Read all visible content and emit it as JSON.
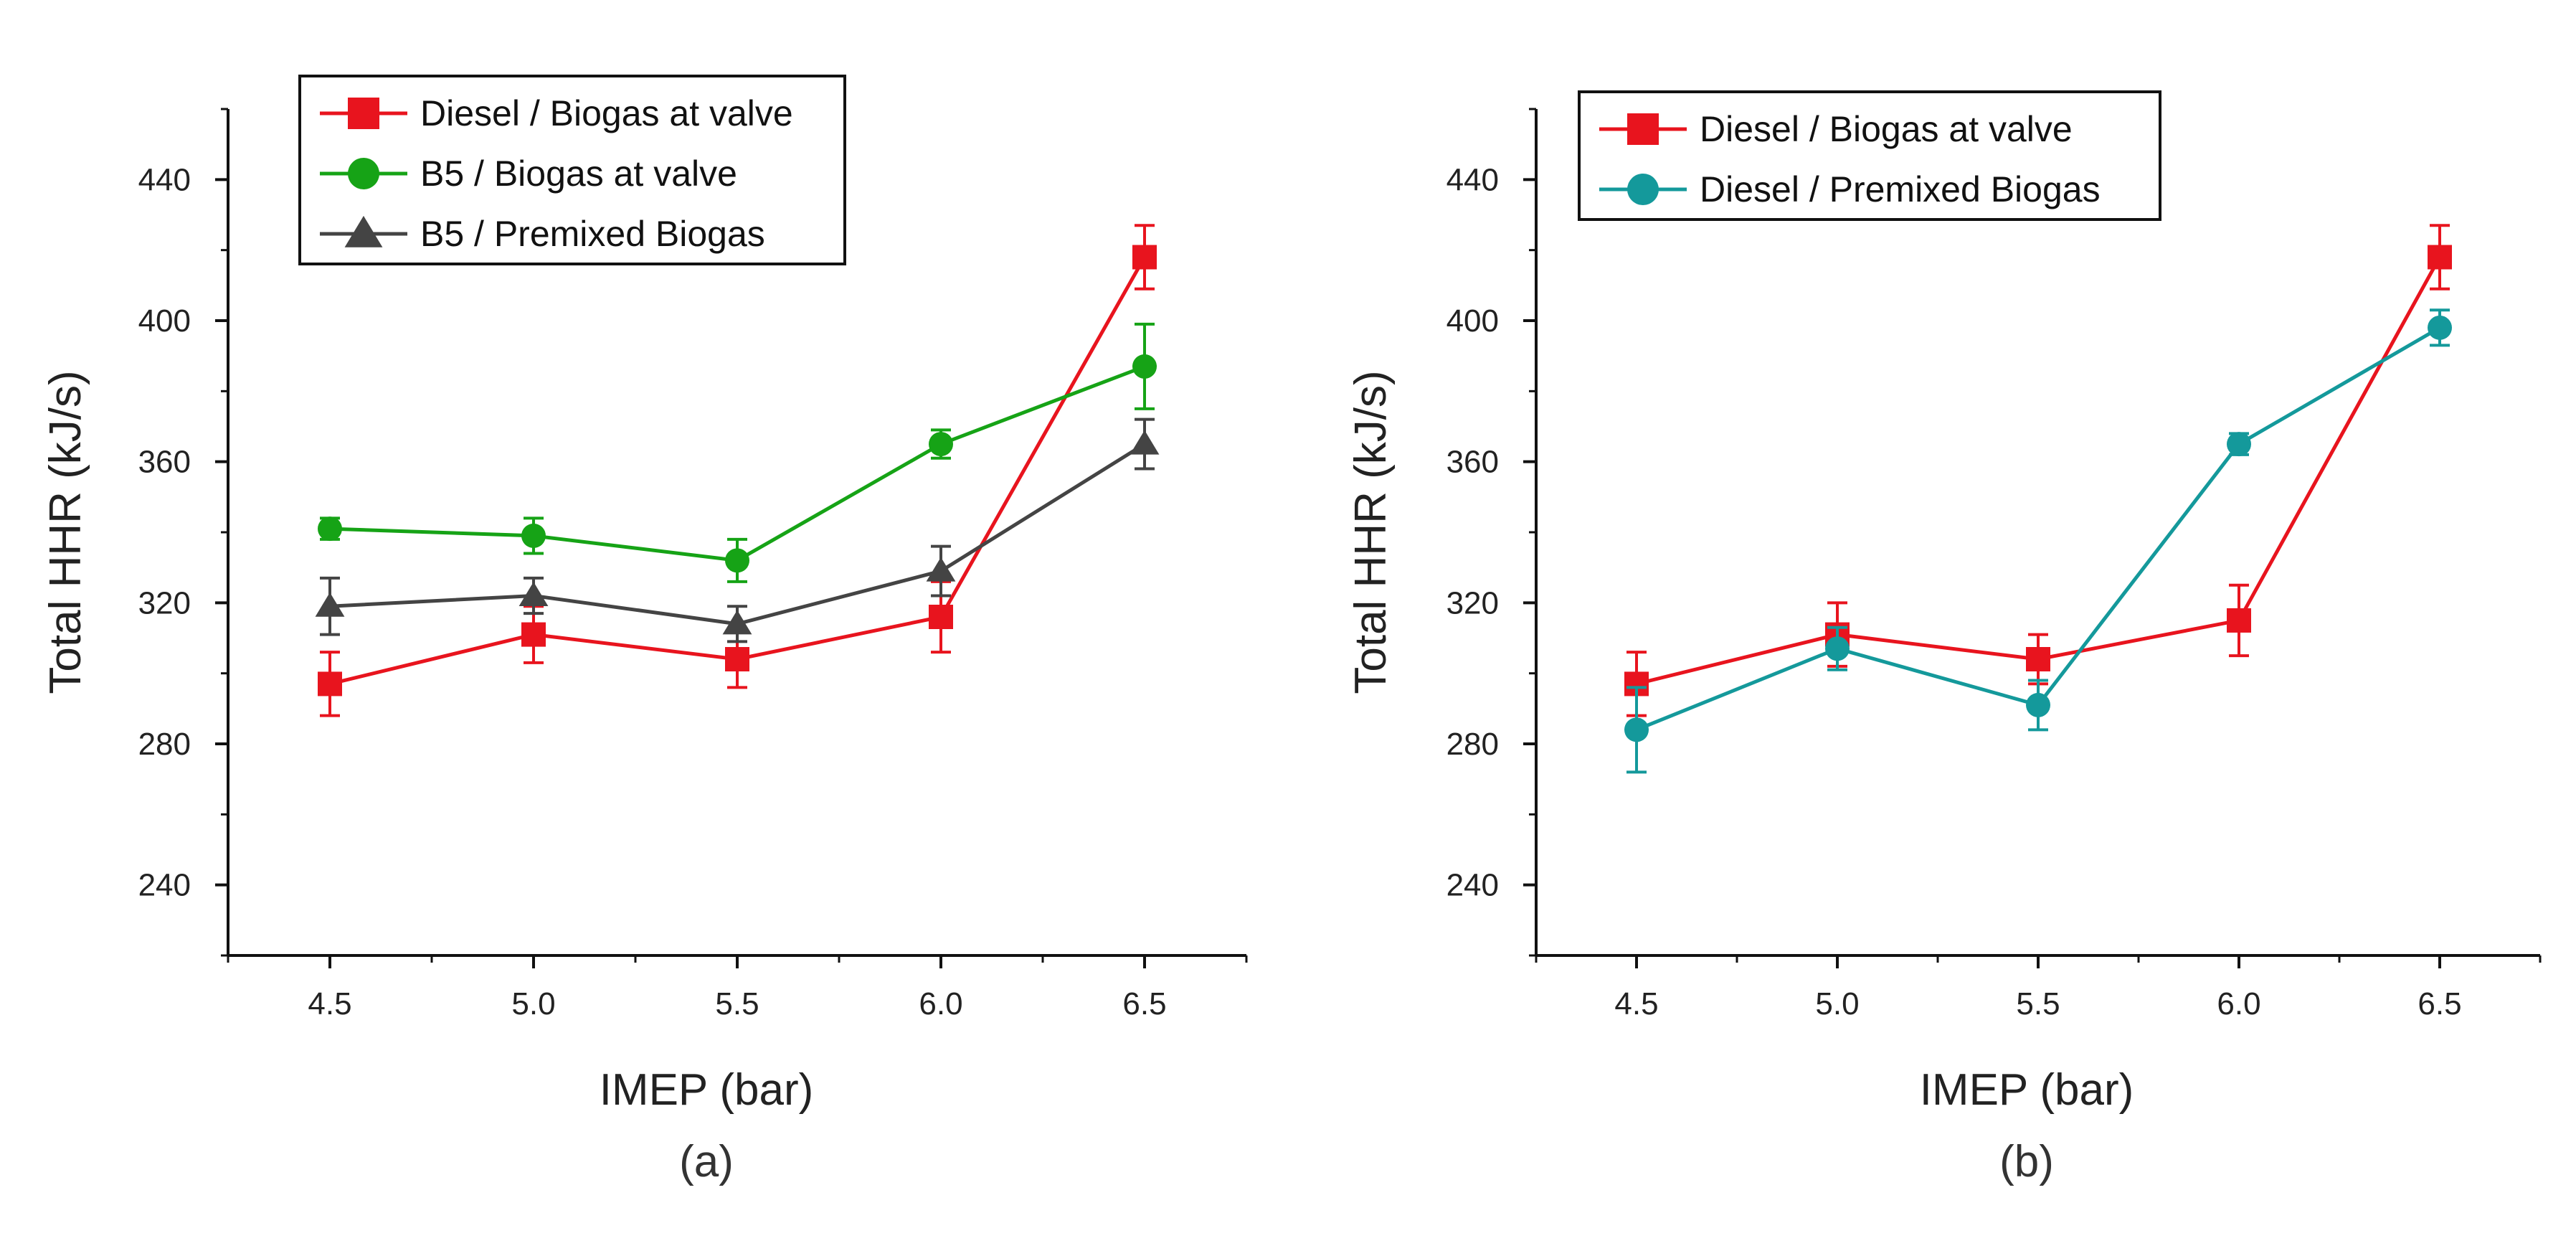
{
  "chart_data": [
    {
      "panel_label": "(a)",
      "type": "line",
      "xlabel": "IMEP (bar)",
      "ylabel": "Total HHR (kJ/s)",
      "x": [
        4.5,
        5.0,
        5.5,
        6.0,
        6.5
      ],
      "x_ticks": [
        "4.5",
        "5.0",
        "5.5",
        "6.0",
        "6.5"
      ],
      "xlim": [
        4.25,
        6.75
      ],
      "y_ticks": [
        "240",
        "280",
        "320",
        "360",
        "400",
        "440"
      ],
      "ylim": [
        220,
        460
      ],
      "grid": false,
      "legend_position": "top-left",
      "series": [
        {
          "name": "Diesel / Biogas at valve",
          "color": "#e8141e",
          "marker": "square",
          "values": [
            297,
            311,
            304,
            316,
            418
          ],
          "errors": [
            9,
            8,
            8,
            10,
            9
          ]
        },
        {
          "name": "B5 / Biogas at valve",
          "color": "#16a316",
          "marker": "circle",
          "values": [
            341,
            339,
            332,
            365,
            387
          ],
          "errors": [
            3,
            5,
            6,
            4,
            12
          ]
        },
        {
          "name": "B5 / Premixed Biogas",
          "color": "#444444",
          "marker": "triangle",
          "values": [
            319,
            322,
            314,
            329,
            365
          ],
          "errors": [
            8,
            5,
            5,
            7,
            7
          ]
        }
      ]
    },
    {
      "panel_label": "(b)",
      "type": "line",
      "xlabel": "IMEP (bar)",
      "ylabel": "Total HHR (kJ/s)",
      "x": [
        4.5,
        5.0,
        5.5,
        6.0,
        6.5
      ],
      "x_ticks": [
        "4.5",
        "5.0",
        "5.5",
        "6.0",
        "6.5"
      ],
      "xlim": [
        4.25,
        6.75
      ],
      "y_ticks": [
        "240",
        "280",
        "320",
        "360",
        "400",
        "440"
      ],
      "ylim": [
        220,
        460
      ],
      "grid": false,
      "legend_position": "top-left",
      "series": [
        {
          "name": "Diesel / Biogas at valve",
          "color": "#e8141e",
          "marker": "square",
          "values": [
            297,
            311,
            304,
            315,
            418
          ],
          "errors": [
            9,
            9,
            7,
            10,
            9
          ]
        },
        {
          "name": "Diesel / Premixed Biogas",
          "color": "#14999b",
          "marker": "circle",
          "values": [
            284,
            307,
            291,
            365,
            398
          ],
          "errors": [
            12,
            6,
            7,
            3,
            5
          ]
        }
      ]
    }
  ]
}
